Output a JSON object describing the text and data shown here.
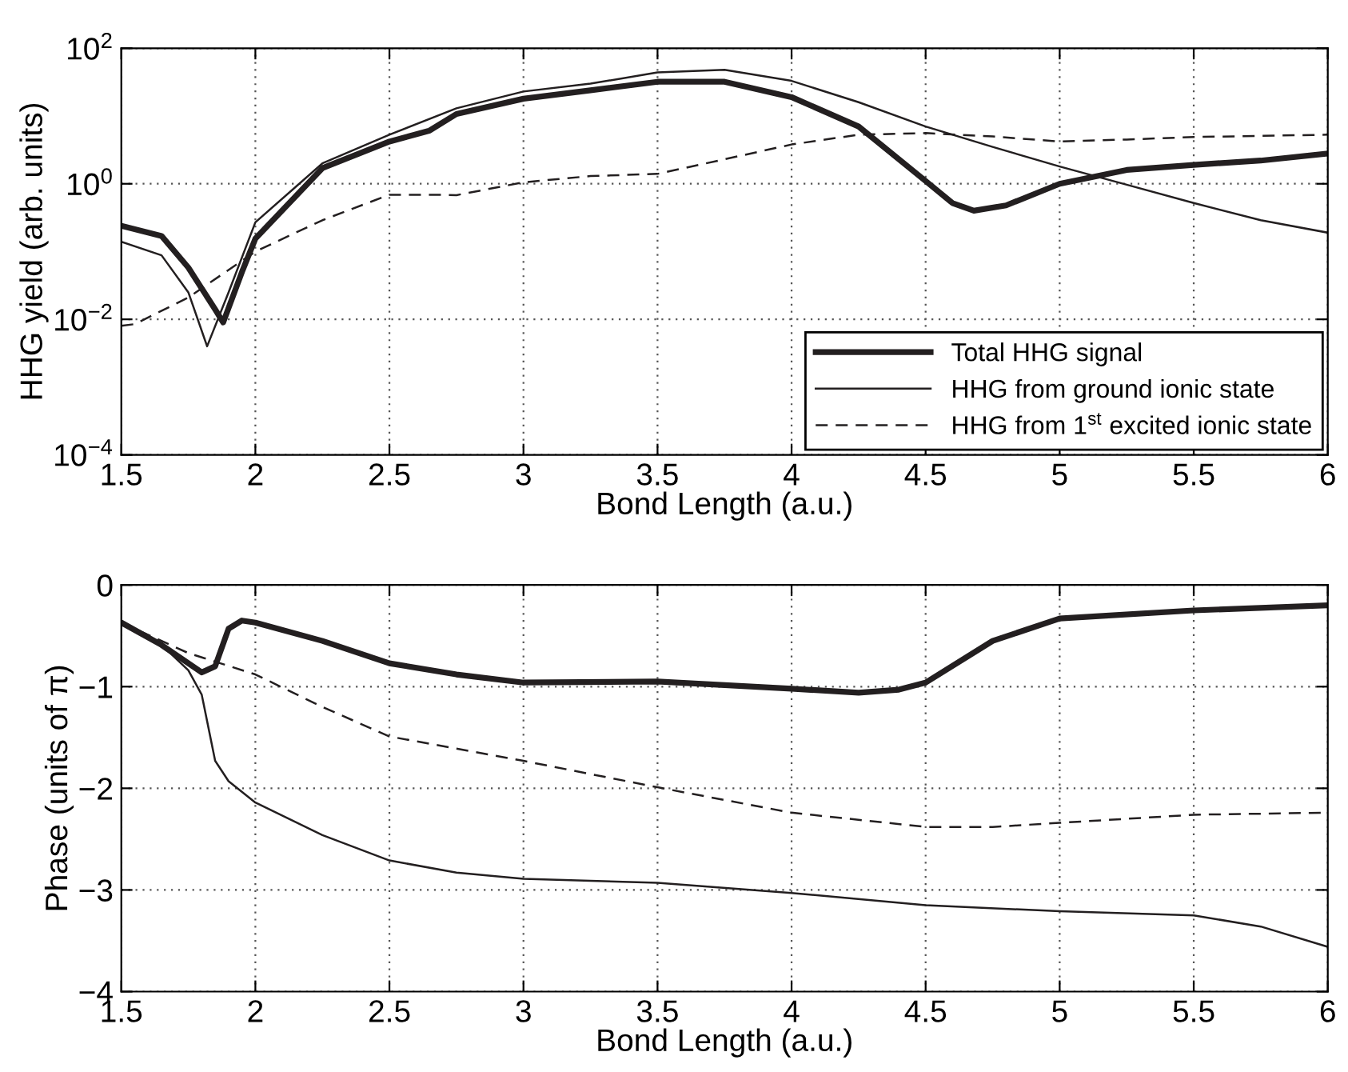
{
  "chart_data": [
    {
      "type": "line",
      "xlabel": "Bond Length (a.u.)",
      "ylabel": "HHG yield (arb. units)",
      "log": "y",
      "grid": true,
      "legend": "bottom right",
      "marker": "none",
      "xlim": [
        1.5,
        6
      ],
      "xticks": [
        1.5,
        2,
        2.5,
        3,
        3.5,
        4,
        4.5,
        5,
        5.5,
        6
      ],
      "ylim": [
        0.0001,
        100
      ],
      "yticks": [
        {
          "value": 0.0001,
          "label": "10$^{−4}$"
        },
        {
          "value": 0.01,
          "label": "10$^{−2}$"
        },
        {
          "value": 1,
          "label": "10$^{0}$"
        },
        {
          "value": 100,
          "label": "10$^{2}$"
        }
      ],
      "series": [
        {
          "name": "Total HHG signal",
          "color": "#231f20",
          "line_style": "solid",
          "x": [
            1.5,
            1.65,
            1.75,
            1.85,
            1.88,
            1.95,
            2.0,
            2.25,
            2.5,
            2.65,
            2.75,
            3.0,
            3.25,
            3.5,
            3.75,
            4.0,
            4.25,
            4.5,
            4.6,
            4.68,
            4.8,
            5.0,
            5.25,
            5.5,
            5.75,
            6.0
          ],
          "values": [
            0.24,
            0.17,
            0.058,
            0.014,
            0.009,
            0.05,
            0.155,
            1.7,
            4.2,
            6.1,
            10.7,
            18,
            24,
            32,
            32,
            19,
            7,
            1.1,
            0.52,
            0.4,
            0.48,
            1.0,
            1.6,
            1.9,
            2.2,
            2.8
          ]
        },
        {
          "name": "HHG from ground ionic state",
          "color": "#231f20",
          "line_style": "solid",
          "x": [
            1.5,
            1.65,
            1.75,
            1.82,
            1.9,
            2.0,
            2.25,
            2.5,
            2.75,
            3.0,
            3.25,
            3.5,
            3.75,
            4.0,
            4.25,
            4.5,
            4.75,
            5.0,
            5.25,
            5.5,
            5.75,
            6.0
          ],
          "values": [
            0.14,
            0.088,
            0.025,
            0.004,
            0.025,
            0.27,
            2.0,
            5.3,
            13,
            23,
            30,
            44,
            48,
            33,
            16,
            7,
            3.5,
            1.8,
            0.97,
            0.52,
            0.29,
            0.19
          ]
        },
        {
          "name": "HHG from 1$^{st}$ excited ionic state",
          "color": "#231f20",
          "line_style": "dashed",
          "x": [
            1.5,
            1.55,
            1.75,
            2.0,
            2.25,
            2.5,
            2.65,
            2.75,
            3.0,
            3.25,
            3.5,
            3.75,
            4.0,
            4.25,
            4.5,
            4.75,
            5.0,
            5.25,
            5.5,
            6.0
          ],
          "values": [
            0.008,
            0.0085,
            0.021,
            0.1,
            0.29,
            0.69,
            0.69,
            0.68,
            1.05,
            1.3,
            1.4,
            2.3,
            3.8,
            5.3,
            5.6,
            5.0,
            4.2,
            4.5,
            4.9,
            5.3
          ]
        }
      ]
    },
    {
      "type": "line",
      "xlabel": "Bond Length (a.u.)",
      "ylabel": "Phase (units of π)",
      "grid": true,
      "marker": "none",
      "xlim": [
        1.5,
        6
      ],
      "xticks": [
        1.5,
        2,
        2.5,
        3,
        3.5,
        4,
        4.5,
        5,
        5.5,
        6
      ],
      "ylim": [
        -4,
        0
      ],
      "yticks": [
        {
          "value": -4,
          "label": "−4"
        },
        {
          "value": -3,
          "label": "−3"
        },
        {
          "value": -2,
          "label": "−2"
        },
        {
          "value": -1,
          "label": "−1"
        },
        {
          "value": 0,
          "label": "0"
        }
      ],
      "series": [
        {
          "color": "#231f20",
          "line_style": "solid",
          "x": [
            1.5,
            1.65,
            1.8,
            1.85,
            1.9,
            1.95,
            2.0,
            2.25,
            2.5,
            2.75,
            3.0,
            3.5,
            4.0,
            4.25,
            4.4,
            4.5,
            4.75,
            5.0,
            5.5,
            6.0
          ],
          "values": [
            -0.37,
            -0.59,
            -0.86,
            -0.8,
            -0.43,
            -0.35,
            -0.37,
            -0.55,
            -0.77,
            -0.88,
            -0.96,
            -0.95,
            -1.02,
            -1.06,
            -1.03,
            -0.96,
            -0.55,
            -0.33,
            -0.25,
            -0.2
          ]
        },
        {
          "color": "#231f20",
          "line_style": "solid",
          "x": [
            1.5,
            1.65,
            1.75,
            1.8,
            1.85,
            1.9,
            2.0,
            2.25,
            2.5,
            2.75,
            3.0,
            3.5,
            4.0,
            4.5,
            5.0,
            5.5,
            5.75,
            6.0
          ],
          "values": [
            -0.37,
            -0.59,
            -0.84,
            -1.08,
            -1.73,
            -1.93,
            -2.14,
            -2.46,
            -2.71,
            -2.83,
            -2.89,
            -2.93,
            -3.03,
            -3.15,
            -3.21,
            -3.25,
            -3.36,
            -3.56
          ]
        },
        {
          "color": "#231f20",
          "line_style": "dashed",
          "x": [
            1.5,
            1.75,
            2.0,
            2.25,
            2.5,
            2.75,
            3.0,
            3.5,
            4.0,
            4.5,
            4.75,
            5.0,
            5.5,
            6.0
          ],
          "values": [
            -0.37,
            -0.67,
            -0.88,
            -1.2,
            -1.49,
            -1.61,
            -1.73,
            -1.99,
            -2.24,
            -2.38,
            -2.38,
            -2.34,
            -2.26,
            -2.24
          ]
        }
      ]
    }
  ]
}
